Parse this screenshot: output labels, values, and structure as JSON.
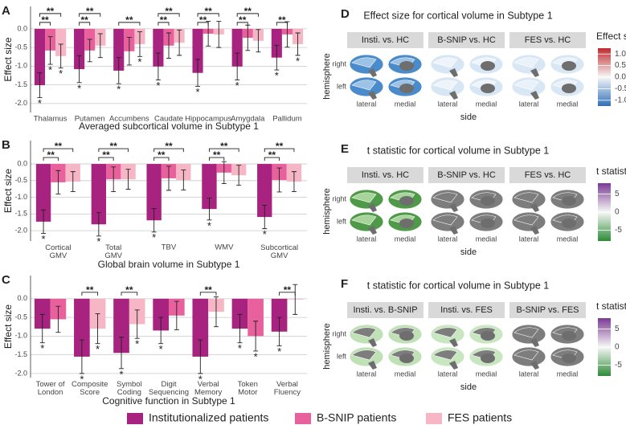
{
  "chart_data": [
    {
      "type": "bar",
      "panel": "A",
      "ylabel": "Effect size",
      "xlabel": "Averaged subcortical volume in Subtype 1",
      "categories": [
        "Thalamus",
        "Putamen",
        "Accumbens",
        "Caudate",
        "Hippocampus",
        "Amygdala",
        "Pallidum"
      ],
      "ylim": [
        -2.24,
        0.6
      ],
      "yticks": [
        {
          "value": 0,
          "label": "0.0"
        },
        -0.5,
        {
          "value": -1,
          "label": "-1.0"
        },
        -1.5,
        {
          "value": -2,
          "label": "-2.0"
        }
      ],
      "grid": true,
      "series": [
        {
          "name": "Institutionalized patients",
          "color": "#a8237f",
          "values": [
            -1.51,
            -1.08,
            -1.12,
            -1.01,
            -1.18,
            -1.01,
            -0.77
          ],
          "errors": [
            0.33,
            0.36,
            0.35,
            0.36,
            0.36,
            0.36,
            0.33
          ],
          "stars": [
            "*",
            "*",
            "*",
            "*",
            "*",
            "*",
            "*"
          ]
        },
        {
          "name": "B-SNIP patients",
          "color": "#e8619c",
          "values": [
            -0.58,
            -0.58,
            -0.6,
            -0.45,
            -0.13,
            -0.24,
            -0.15
          ],
          "errors": [
            0.37,
            0.3,
            0.37,
            0.34,
            0.33,
            0.34,
            0.34
          ],
          "stars": [
            "*",
            null,
            null,
            null,
            null,
            null,
            null
          ]
        },
        {
          "name": "FES patients",
          "color": "#f6b6c6",
          "values": [
            -0.73,
            -0.45,
            -0.41,
            -0.37,
            -0.15,
            -0.32,
            -0.41
          ],
          "errors": [
            0.32,
            0.32,
            0.33,
            0.34,
            0.35,
            0.3,
            0.3
          ],
          "stars": [
            "*",
            null,
            "*",
            null,
            null,
            null,
            "*"
          ]
        }
      ],
      "brackets": [
        {
          "category": 0,
          "pair": [
            0,
            1
          ],
          "label": "**"
        },
        {
          "category": 0,
          "pair": [
            0,
            2
          ],
          "label": "**"
        },
        {
          "category": 1,
          "pair": [
            0,
            1
          ],
          "label": "**"
        },
        {
          "category": 1,
          "pair": [
            0,
            2
          ],
          "label": "**"
        },
        {
          "category": 2,
          "pair": [
            0,
            2
          ],
          "label": "**"
        },
        {
          "category": 3,
          "pair": [
            0,
            1
          ],
          "label": "**"
        },
        {
          "category": 3,
          "pair": [
            0,
            2
          ],
          "label": "**"
        },
        {
          "category": 4,
          "pair": [
            0,
            1
          ],
          "label": "**"
        },
        {
          "category": 4,
          "pair": [
            0,
            2
          ],
          "label": "**"
        },
        {
          "category": 5,
          "pair": [
            0,
            1
          ],
          "label": "**"
        },
        {
          "category": 5,
          "pair": [
            0,
            2
          ],
          "label": "**"
        },
        {
          "category": 6,
          "pair": [
            0,
            1
          ],
          "label": "**"
        }
      ]
    },
    {
      "type": "bar",
      "panel": "B",
      "ylabel": "Effect size",
      "xlabel": "Global brain volume in Subtype 1",
      "categories": [
        "Cortical GMV",
        "Total GMV",
        "TBV",
        "WMV",
        "Subcortical GMV"
      ],
      "ylim": [
        -2.31,
        0.7
      ],
      "yticks": [
        {
          "value": 0,
          "label": "0.0"
        },
        -0.5,
        {
          "value": -1,
          "label": "-1.0"
        },
        -1.5,
        {
          "value": -2,
          "label": "-2.0"
        }
      ],
      "grid": true,
      "series": [
        {
          "name": "Institutionalized patients",
          "color": "#a8237f",
          "values": [
            -1.73,
            -1.81,
            -1.69,
            -1.35,
            -1.59
          ],
          "errors": [
            0.35,
            0.35,
            0.35,
            0.33,
            0.35
          ],
          "stars": [
            "*",
            "*",
            "*",
            "*",
            "*"
          ]
        },
        {
          "name": "B-SNIP patients",
          "color": "#e8619c",
          "values": [
            -0.55,
            -0.46,
            -0.43,
            -0.26,
            -0.48
          ],
          "errors": [
            0.35,
            0.37,
            0.36,
            0.33,
            0.36
          ],
          "stars": [
            null,
            null,
            null,
            null,
            null
          ]
        },
        {
          "name": "FES patients",
          "color": "#f6b6c6",
          "values": [
            -0.53,
            -0.46,
            -0.48,
            -0.34,
            -0.53
          ],
          "errors": [
            0.3,
            0.3,
            0.3,
            0.3,
            0.3
          ],
          "stars": [
            null,
            null,
            null,
            null,
            null
          ]
        }
      ],
      "brackets": [
        {
          "category": 0,
          "pair": [
            0,
            1
          ],
          "label": "**"
        },
        {
          "category": 0,
          "pair": [
            0,
            2
          ],
          "label": "**"
        },
        {
          "category": 1,
          "pair": [
            0,
            1
          ],
          "label": "**"
        },
        {
          "category": 1,
          "pair": [
            0,
            2
          ],
          "label": "**"
        },
        {
          "category": 2,
          "pair": [
            0,
            1
          ],
          "label": "**"
        },
        {
          "category": 2,
          "pair": [
            0,
            2
          ],
          "label": "**"
        },
        {
          "category": 3,
          "pair": [
            0,
            1
          ],
          "label": "**"
        },
        {
          "category": 3,
          "pair": [
            0,
            2
          ],
          "label": "**"
        },
        {
          "category": 4,
          "pair": [
            0,
            1
          ],
          "label": "**"
        },
        {
          "category": 4,
          "pair": [
            0,
            2
          ],
          "label": "**"
        }
      ]
    },
    {
      "type": "bar",
      "panel": "C",
      "ylabel": "Effect size",
      "xlabel": "Cognitive function in Subtype 1",
      "categories": [
        "Tower of London",
        "Composite Score",
        "Symbol Coding",
        "Digit Sequencing",
        "Verbal Memory",
        "Token Motor",
        "Verbal Fluency"
      ],
      "ylim": [
        -2.11,
        0.62
      ],
      "yticks": [
        {
          "value": 0,
          "label": "0.0"
        },
        -0.5,
        {
          "value": -1,
          "label": "-1.0"
        },
        -1.5,
        {
          "value": -2,
          "label": "-2.0"
        }
      ],
      "grid": true,
      "series": [
        {
          "name": "Institutionalized patients",
          "color": "#a8237f",
          "values": [
            -0.8,
            -1.55,
            -1.45,
            -0.85,
            -1.55,
            -0.8,
            -0.88
          ],
          "errors": [
            0.38,
            0.45,
            0.42,
            0.35,
            0.45,
            0.38,
            0.38
          ],
          "stars": [
            "*",
            "*",
            "*",
            "*",
            "*",
            "*",
            "*"
          ]
        },
        {
          "name": "B-SNIP patients",
          "color": "#e8619c",
          "values": [
            -0.55,
            null,
            null,
            -0.45,
            null,
            -1.0,
            null
          ],
          "errors": [
            0.35,
            null,
            null,
            0.38,
            null,
            0.4,
            null
          ],
          "stars": [
            null,
            null,
            null,
            null,
            null,
            "*",
            null
          ]
        },
        {
          "name": "FES patients",
          "color": "#f6b6c6",
          "values": [
            null,
            -0.8,
            -0.68,
            null,
            -0.35,
            null,
            -0.02
          ],
          "errors": [
            null,
            0.4,
            0.38,
            null,
            0.4,
            null,
            0.4
          ],
          "stars": [
            null,
            "*",
            "*",
            null,
            null,
            null,
            null
          ]
        }
      ],
      "brackets": [
        {
          "category": 1,
          "pair": [
            0,
            2
          ],
          "label": "**"
        },
        {
          "category": 2,
          "pair": [
            0,
            2
          ],
          "label": "**"
        },
        {
          "category": 4,
          "pair": [
            0,
            2
          ],
          "label": "**"
        },
        {
          "category": 6,
          "pair": [
            0,
            2
          ],
          "label": "**"
        }
      ]
    },
    {
      "type": "brain",
      "panel": "D",
      "title": "Effect size for cortical volume in Subtype 1",
      "facets": [
        "Insti. vs. HC",
        "B-SNIP vs. HC",
        "FES vs. HC"
      ],
      "facet_fill": [
        "#4a8bcb",
        "#d7e6f4",
        "#d9e7f4"
      ],
      "facet_accent": [
        "#9cc3e6",
        "#eef4fa",
        "#eaf2f9"
      ],
      "rows": [
        "right",
        "left"
      ],
      "columns": [
        "lateral",
        "medial"
      ],
      "ylabel": "hemisphere",
      "xlabel": "side",
      "colorbar": {
        "title": "Effect size",
        "lim": [
          -1.25,
          1.25
        ],
        "colors": [
          "#2f6fb8",
          "#f7f7f7",
          "#c0282d"
        ],
        "ticks": [
          {
            "value": 1,
            "label": "1.0"
          },
          0.5,
          {
            "value": 0,
            "label": "0.0"
          },
          -0.5,
          {
            "value": -1,
            "label": "-1.0"
          }
        ]
      }
    },
    {
      "type": "brain",
      "panel": "E",
      "title": "t statistic for cortical volume in Subtype 1",
      "facets": [
        "Insti. vs. HC",
        "B-SNIP vs. HC",
        "FES vs. HC"
      ],
      "facet_fill": [
        "#4f9a48",
        "#7d7d7d",
        "#7d7d7d"
      ],
      "facet_accent": [
        "#a6d49a",
        "#7d7d7d",
        "#7d7d7d"
      ],
      "rows": [
        "right",
        "left"
      ],
      "columns": [
        "lateral",
        "medial"
      ],
      "ylabel": "hemisphere",
      "xlabel": "side",
      "colorbar": {
        "title": "t statistic",
        "lim": [
          -8,
          8
        ],
        "colors": [
          "#2e8b3a",
          "#f7f7f7",
          "#7a3a93"
        ],
        "ticks": [
          5,
          0,
          -5
        ]
      }
    },
    {
      "type": "brain",
      "panel": "F",
      "title": "t statistic for cortical volume in Subtype 1",
      "facets": [
        "Insti. vs. B-SNIP",
        "Insti. vs. FES",
        "B-SNIP vs. FES"
      ],
      "facet_fill": [
        "#bfe1b5",
        "#c8e6bf",
        "#7d7d7d"
      ],
      "facet_accent": [
        "#7d7d7d",
        "#7d7d7d",
        "#7d7d7d"
      ],
      "rows": [
        "right",
        "left"
      ],
      "columns": [
        "lateral",
        "medial"
      ],
      "ylabel": "hemisphere",
      "xlabel": "side",
      "colorbar": {
        "title": "t statistic",
        "lim": [
          -8,
          8
        ],
        "colors": [
          "#2e8b3a",
          "#f7f7f7",
          "#7a3a93"
        ],
        "ticks": [
          5,
          0,
          -5
        ]
      }
    }
  ]
}
